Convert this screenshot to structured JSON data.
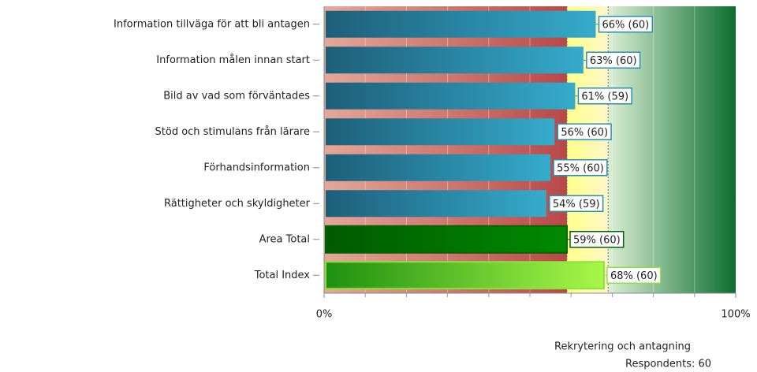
{
  "chart_data": {
    "type": "bar",
    "orientation": "horizontal",
    "categories": [
      "Information tillväga för att bli antagen",
      "Information målen innan start",
      "Bild av vad som förväntades",
      "Stöd och stimulans från lärare",
      "Förhandsinformation",
      "Rättigheter och skyldigheter",
      "Area Total",
      "Total Index"
    ],
    "values": [
      66,
      63,
      61,
      56,
      55,
      54,
      59,
      68
    ],
    "value_labels": [
      "66% (60)",
      "63% (60)",
      "61% (59)",
      "56% (60)",
      "55% (60)",
      "54% (59)",
      "59% (60)",
      "68% (60)"
    ],
    "colors": [
      [
        "#1d5f7a",
        "#35abcb"
      ],
      [
        "#1d5f7a",
        "#35abcb"
      ],
      [
        "#1d5f7a",
        "#35abcb"
      ],
      [
        "#1d5f7a",
        "#35abcb"
      ],
      [
        "#1d5f7a",
        "#35abcb"
      ],
      [
        "#1d5f7a",
        "#35abcb"
      ],
      [
        "#005a00",
        "#008a00"
      ],
      [
        "#1e9010",
        "#a8f848"
      ]
    ],
    "label_colors": [
      "#2a8fb5",
      "#2a8fb5",
      "#2a8fb5",
      "#2a8fb5",
      "#2a8fb5",
      "#2a8fb5",
      "#006400",
      "#8ee040"
    ],
    "zones": [
      {
        "from": 0,
        "to": 59,
        "colors": [
          "#e4a898",
          "#b94848"
        ]
      },
      {
        "from": 59,
        "to": 69,
        "colors": [
          "#ffff88",
          "#fff6c8"
        ]
      },
      {
        "from": 69,
        "to": 100,
        "colors": [
          "#dcefd4",
          "#0a6e2e"
        ]
      }
    ],
    "xlim": [
      0,
      100
    ],
    "xticks": [
      {
        "value": 0,
        "label": "0%"
      },
      {
        "value": 100,
        "label": "100%"
      }
    ],
    "xminor": [
      10,
      20,
      30,
      40,
      50,
      60,
      70,
      80,
      90
    ],
    "footer": [
      "Rekrytering och antagning",
      "Respondents: 60"
    ]
  }
}
